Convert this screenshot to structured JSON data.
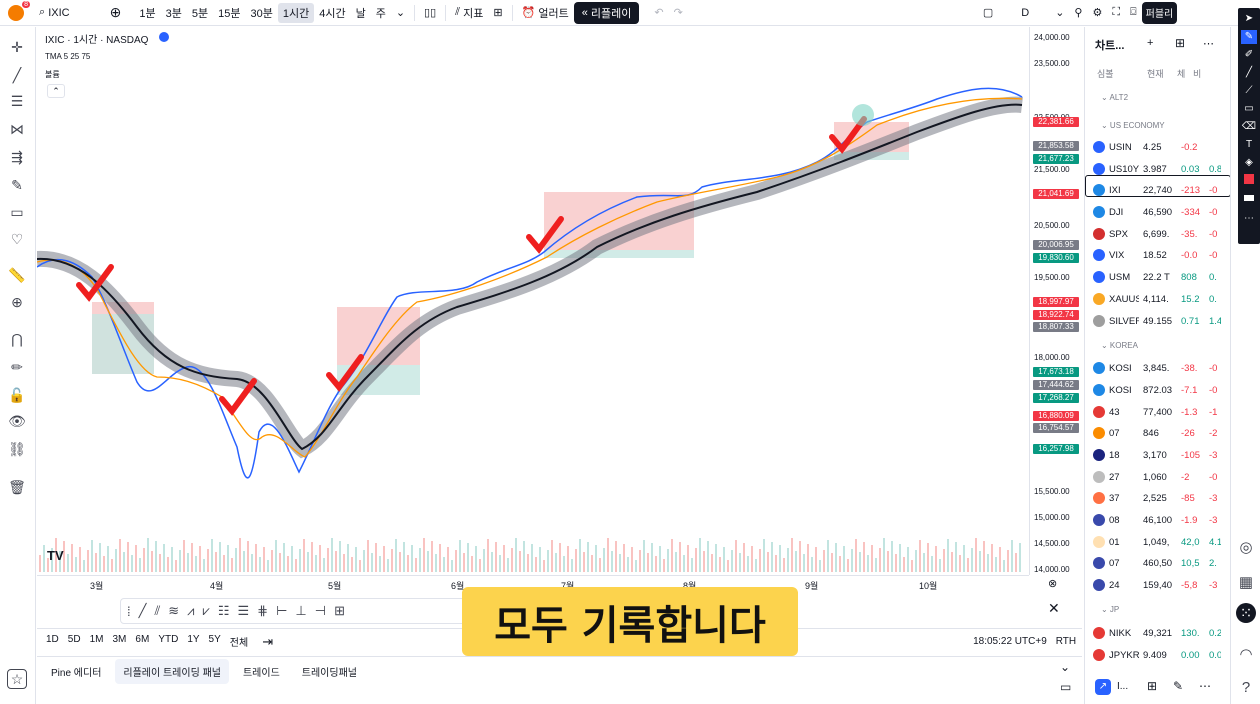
{
  "topbar": {
    "avatar_badge": "8",
    "symbol": "IXIC",
    "intervals": [
      "1분",
      "3분",
      "5분",
      "15분",
      "30분",
      "1시간",
      "4시간",
      "날",
      "주"
    ],
    "active_interval": "1시간",
    "indicators": "지표",
    "alert": "얼러트",
    "replay": "리플레이",
    "range_letter": "D",
    "publish": "퍼블리"
  },
  "legend": {
    "title": "IXIC · 1시간 · NASDAQ",
    "tma": "TMA 5 25 75",
    "volume": "볼륨"
  },
  "price_axis": {
    "labels": [
      "24,000.00",
      "23,500.00",
      "22,500.00",
      "21,500.00",
      "20,500.00",
      "19,500.00",
      "18,000.00",
      "15,500.00",
      "15,000.00",
      "14,500.00",
      "14,000.00"
    ],
    "badges": [
      {
        "text": "22,381.66",
        "color": "#f23645"
      },
      {
        "text": "21,853.58",
        "color": "#787b86"
      },
      {
        "text": "21,677.23",
        "color": "#089981"
      },
      {
        "text": "21,041.69",
        "color": "#f23645"
      },
      {
        "text": "20,006.95",
        "color": "#787b86"
      },
      {
        "text": "19,830.60",
        "color": "#089981"
      },
      {
        "text": "18,997.97",
        "color": "#f23645"
      },
      {
        "text": "18,922.74",
        "color": "#f23645"
      },
      {
        "text": "18,807.33",
        "color": "#787b86"
      },
      {
        "text": "17,673.18",
        "color": "#089981"
      },
      {
        "text": "17,444.62",
        "color": "#787b86"
      },
      {
        "text": "17,268.27",
        "color": "#089981"
      },
      {
        "text": "16,880.09",
        "color": "#f23645"
      },
      {
        "text": "16,754.57",
        "color": "#787b86"
      },
      {
        "text": "16,257.98",
        "color": "#089981"
      }
    ]
  },
  "time_axis": [
    "3월",
    "4월",
    "5월",
    "6월",
    "7월",
    "8월",
    "9월",
    "10월"
  ],
  "range_bar": {
    "ranges": [
      "1D",
      "5D",
      "1M",
      "3M",
      "6M",
      "YTD",
      "1Y",
      "5Y",
      "전체"
    ],
    "clock": "18:05:22 UTC+9",
    "rth": "RTH"
  },
  "bottom_tabs": [
    "Pine 에디터",
    "리플레이 트레이딩 패널",
    "트레이드",
    "트레이딩패널"
  ],
  "subtitle": "모두 기록합니다",
  "watchlist": {
    "header": "차트...",
    "cols": [
      "심볼",
      "현재",
      "체",
      "비"
    ],
    "sections": [
      "ALT2",
      "US ECONOMY",
      "KOREA",
      "JP"
    ],
    "rows": [
      {
        "sym": "USIN",
        "last": "4.25",
        "chg": "-0.2",
        "pct": "",
        "dir": "neg",
        "color": "#2962ff"
      },
      {
        "sym": "US10Y",
        "last": "3.987",
        "chg": "0.03",
        "pct": "0.8",
        "dir": "pos",
        "color": "#2962ff"
      },
      {
        "sym": "IXI",
        "last": "22,740",
        "chg": "-213",
        "pct": "-0",
        "dir": "neg",
        "color": "#1e88e5"
      },
      {
        "sym": "DJI",
        "last": "46,590",
        "chg": "-334",
        "pct": "-0",
        "dir": "neg",
        "color": "#1e88e5"
      },
      {
        "sym": "SPX",
        "last": "6,699.",
        "chg": "-35.",
        "pct": "-0",
        "dir": "neg",
        "color": "#d32f2f"
      },
      {
        "sym": "VIX",
        "last": "18.52",
        "chg": "-0.0",
        "pct": "-0",
        "dir": "neg",
        "color": "#2962ff"
      },
      {
        "sym": "USM",
        "last": "22.2 T",
        "chg": "808",
        "pct": "0.",
        "dir": "pos",
        "color": "#2962ff"
      },
      {
        "sym": "XAUUS",
        "last": "4,114.",
        "chg": "15.2",
        "pct": "0.",
        "dir": "pos",
        "color": "#f9a825"
      },
      {
        "sym": "SILVER",
        "last": "49.155",
        "chg": "0.71",
        "pct": "1.4",
        "dir": "pos",
        "color": "#9e9e9e"
      },
      {
        "sym": "KOSI",
        "last": "3,845.",
        "chg": "-38.",
        "pct": "-0",
        "dir": "neg",
        "color": "#1e88e5"
      },
      {
        "sym": "KOSI",
        "last": "872.03",
        "chg": "-7.1",
        "pct": "-0",
        "dir": "neg",
        "color": "#1e88e5"
      },
      {
        "sym": "43",
        "last": "77,400",
        "chg": "-1.3",
        "pct": "-1",
        "dir": "neg",
        "color": "#e53935"
      },
      {
        "sym": "07",
        "last": "846",
        "chg": "-26",
        "pct": "-2",
        "dir": "neg",
        "color": "#fb8c00"
      },
      {
        "sym": "18",
        "last": "3,170",
        "chg": "-105",
        "pct": "-3",
        "dir": "neg",
        "color": "#1a237e"
      },
      {
        "sym": "27",
        "last": "1,060",
        "chg": "-2",
        "pct": "-0",
        "dir": "neg",
        "color": "#bdbdbd"
      },
      {
        "sym": "37",
        "last": "2,525",
        "chg": "-85",
        "pct": "-3",
        "dir": "neg",
        "color": "#ff7043"
      },
      {
        "sym": "08",
        "last": "46,100",
        "chg": "-1.9",
        "pct": "-3",
        "dir": "neg",
        "color": "#3949ab"
      },
      {
        "sym": "01",
        "last": "1,049,",
        "chg": "42,0",
        "pct": "4.1",
        "dir": "pos",
        "color": "#ffe0b2"
      },
      {
        "sym": "07",
        "last": "460,50",
        "chg": "10,5",
        "pct": "2.",
        "dir": "pos",
        "color": "#3949ab"
      },
      {
        "sym": "24",
        "last": "159,40",
        "chg": "-5,8",
        "pct": "-3",
        "dir": "neg",
        "color": "#3949ab"
      },
      {
        "sym": "NIKK",
        "last": "49,321",
        "chg": "130.",
        "pct": "0.2",
        "dir": "pos",
        "color": "#e53935"
      },
      {
        "sym": "JPYKR",
        "last": "9.409",
        "chg": "0.00",
        "pct": "0.0",
        "dir": "pos",
        "color": "#e53935"
      }
    ],
    "footer": "I..."
  },
  "chart_data": {
    "type": "line",
    "series": [],
    "x": [
      "3월",
      "4월",
      "5월",
      "6월",
      "7월",
      "8월",
      "9월",
      "10월"
    ],
    "ylim": [
      14000,
      24000
    ]
  }
}
